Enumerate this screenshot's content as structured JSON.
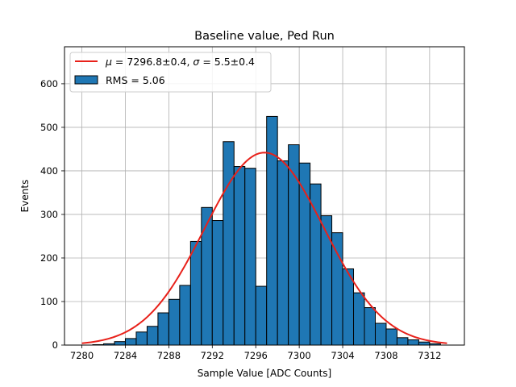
{
  "chart_data": {
    "type": "bar",
    "title": "Baseline value, Ped Run",
    "xlabel": "Sample Value [ADC Counts]",
    "ylabel": "Events",
    "xlim": [
      7278.4,
      7315.2
    ],
    "ylim": [
      0,
      685
    ],
    "xticks": [
      7280,
      7284,
      7288,
      7292,
      7296,
      7300,
      7304,
      7308,
      7312
    ],
    "yticks": [
      0,
      100,
      200,
      300,
      400,
      500,
      600
    ],
    "grid": true,
    "legend_position": "upper-left",
    "bin_width": 1,
    "bin_edges_start": 7281,
    "hist_series": {
      "name": "RMS = 5.06",
      "values": [
        1,
        3,
        8,
        15,
        30,
        43,
        74,
        105,
        137,
        238,
        316,
        286,
        467,
        410,
        406,
        135,
        525,
        423,
        460,
        418,
        370,
        297,
        258,
        175,
        120,
        86,
        50,
        37,
        17,
        12,
        7,
        3
      ]
    },
    "fit_series": {
      "name": "$\\mu = 7296.8 \\pm 0.4$, $\\sigma = 5.5 \\pm 0.4$",
      "mu": 7296.8,
      "sigma": 5.5,
      "amplitude": 442,
      "x_range": [
        7280,
        7313.6
      ]
    },
    "colors": {
      "bar": "#1f77b4",
      "bar_edge": "#000000",
      "fit": "#e8211a",
      "grid": "#b0b0b0"
    }
  }
}
